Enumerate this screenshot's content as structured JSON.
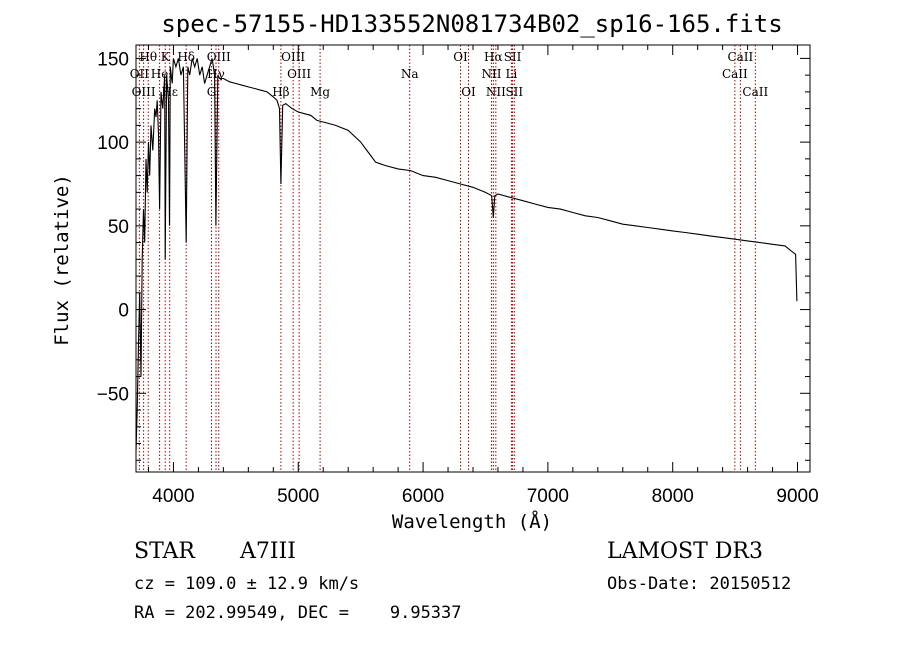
{
  "chart_data": {
    "type": "line",
    "title": "spec-57155-HD133552N081734B02_sp16-165.fits",
    "xlabel": "Wavelength (Å)",
    "ylabel": "Flux (relative)",
    "xlim": [
      3700,
      9100
    ],
    "ylim": [
      -97,
      158
    ],
    "xticks": [
      4000,
      5000,
      6000,
      7000,
      8000,
      9000
    ],
    "xtick_labels": [
      "4000",
      "5000",
      "6000",
      "7000",
      "8000",
      "9000"
    ],
    "yticks": [
      -50,
      0,
      50,
      100,
      150
    ],
    "ytick_labels": [
      "−50",
      "0",
      "50",
      "100",
      "150"
    ],
    "series": [
      {
        "name": "spectrum",
        "color": "#000000",
        "x": [
          3700,
          3710,
          3720,
          3730,
          3740,
          3750,
          3760,
          3770,
          3780,
          3790,
          3800,
          3810,
          3820,
          3835,
          3850,
          3860,
          3870,
          3880,
          3889,
          3900,
          3915,
          3930,
          3934,
          3945,
          3960,
          3968,
          3975,
          3990,
          4000,
          4020,
          4040,
          4060,
          4080,
          4102,
          4115,
          4130,
          4150,
          4170,
          4190,
          4210,
          4230,
          4250,
          4270,
          4290,
          4310,
          4330,
          4340,
          4355,
          4370,
          4400,
          4450,
          4500,
          4550,
          4600,
          4650,
          4700,
          4750,
          4800,
          4830,
          4850,
          4861,
          4875,
          4900,
          4950,
          5000,
          5050,
          5100,
          5150,
          5200,
          5300,
          5400,
          5500,
          5550,
          5580,
          5620,
          5700,
          5800,
          5900,
          6000,
          6100,
          6200,
          6300,
          6400,
          6500,
          6550,
          6563,
          6575,
          6600,
          6700,
          6800,
          6900,
          7000,
          7100,
          7200,
          7300,
          7400,
          7500,
          7600,
          7700,
          7800,
          7900,
          8000,
          8100,
          8200,
          8300,
          8400,
          8500,
          8600,
          8700,
          8800,
          8900,
          8950,
          8985,
          8995
        ],
        "y": [
          -85,
          -60,
          -20,
          10,
          -40,
          30,
          60,
          40,
          90,
          70,
          100,
          80,
          110,
          95,
          120,
          115,
          125,
          105,
          60,
          130,
          120,
          140,
          30,
          140,
          125,
          50,
          145,
          135,
          150,
          145,
          150,
          140,
          145,
          40,
          145,
          140,
          150,
          145,
          150,
          140,
          145,
          135,
          140,
          145,
          150,
          140,
          50,
          140,
          138,
          138,
          136,
          135,
          134,
          133,
          132,
          131,
          130,
          127,
          125,
          120,
          75,
          122,
          123,
          120,
          118,
          117,
          116,
          113,
          112,
          110,
          107,
          100,
          95,
          92,
          88,
          86,
          84,
          83,
          80,
          79,
          77,
          75,
          73,
          70,
          68,
          55,
          68,
          69,
          67,
          65,
          63,
          61,
          60,
          58,
          56,
          55,
          53,
          51,
          50,
          49,
          48,
          47,
          46,
          45,
          44,
          43,
          42,
          41,
          40,
          39,
          38,
          35,
          33,
          5
        ]
      }
    ],
    "lines": [
      {
        "label": "Hθ",
        "wavelength": 3798,
        "row": 0
      },
      {
        "label": "OII",
        "wavelength": 3727,
        "row": 1
      },
      {
        "label": "OIII",
        "wavelength": 3761,
        "row": 2
      },
      {
        "label": "He",
        "wavelength": 3889,
        "row": 1
      },
      {
        "label": "K",
        "wavelength": 3934,
        "row": 0
      },
      {
        "label": "Hε",
        "wavelength": 3970,
        "row": 2
      },
      {
        "label": "Hδ",
        "wavelength": 4102,
        "row": 0
      },
      {
        "label": "G",
        "wavelength": 4305,
        "row": 2
      },
      {
        "label": "Hγ",
        "wavelength": 4341,
        "row": 1
      },
      {
        "label": "OIII",
        "wavelength": 4363,
        "row": 0
      },
      {
        "label": "Hβ",
        "wavelength": 4861,
        "row": 2
      },
      {
        "label": "OIII",
        "wavelength": 4959,
        "row": 0
      },
      {
        "label": "OIII",
        "wavelength": 5007,
        "row": 1
      },
      {
        "label": "Mg",
        "wavelength": 5175,
        "row": 2
      },
      {
        "label": "Na",
        "wavelength": 5893,
        "row": 1
      },
      {
        "label": "OI",
        "wavelength": 6300,
        "row": 0
      },
      {
        "label": "OI",
        "wavelength": 6364,
        "row": 2
      },
      {
        "label": "Hα",
        "wavelength": 6563,
        "row": 0
      },
      {
        "label": "NII",
        "wavelength": 6548,
        "row": 1
      },
      {
        "label": "NII",
        "wavelength": 6583,
        "row": 2
      },
      {
        "label": "SII",
        "wavelength": 6717,
        "row": 0
      },
      {
        "label": "Li",
        "wavelength": 6708,
        "row": 1
      },
      {
        "label": "SII",
        "wavelength": 6731,
        "row": 2
      },
      {
        "label": "CaII",
        "wavelength": 8542,
        "row": 0
      },
      {
        "label": "CaII",
        "wavelength": 8498,
        "row": 1
      },
      {
        "label": "CaII",
        "wavelength": 8662,
        "row": 2
      }
    ],
    "colors": {
      "line_marker": "#b00000",
      "spectrum": "#000000"
    }
  },
  "info": {
    "class": "STAR",
    "subclass": "A7III",
    "survey": "LAMOST DR3",
    "cz": "cz = 109.0 ± 12.9 km/s",
    "obs_date": "Obs-Date: 20150512",
    "radec": "RA = 202.99549, DEC =    9.95337"
  }
}
